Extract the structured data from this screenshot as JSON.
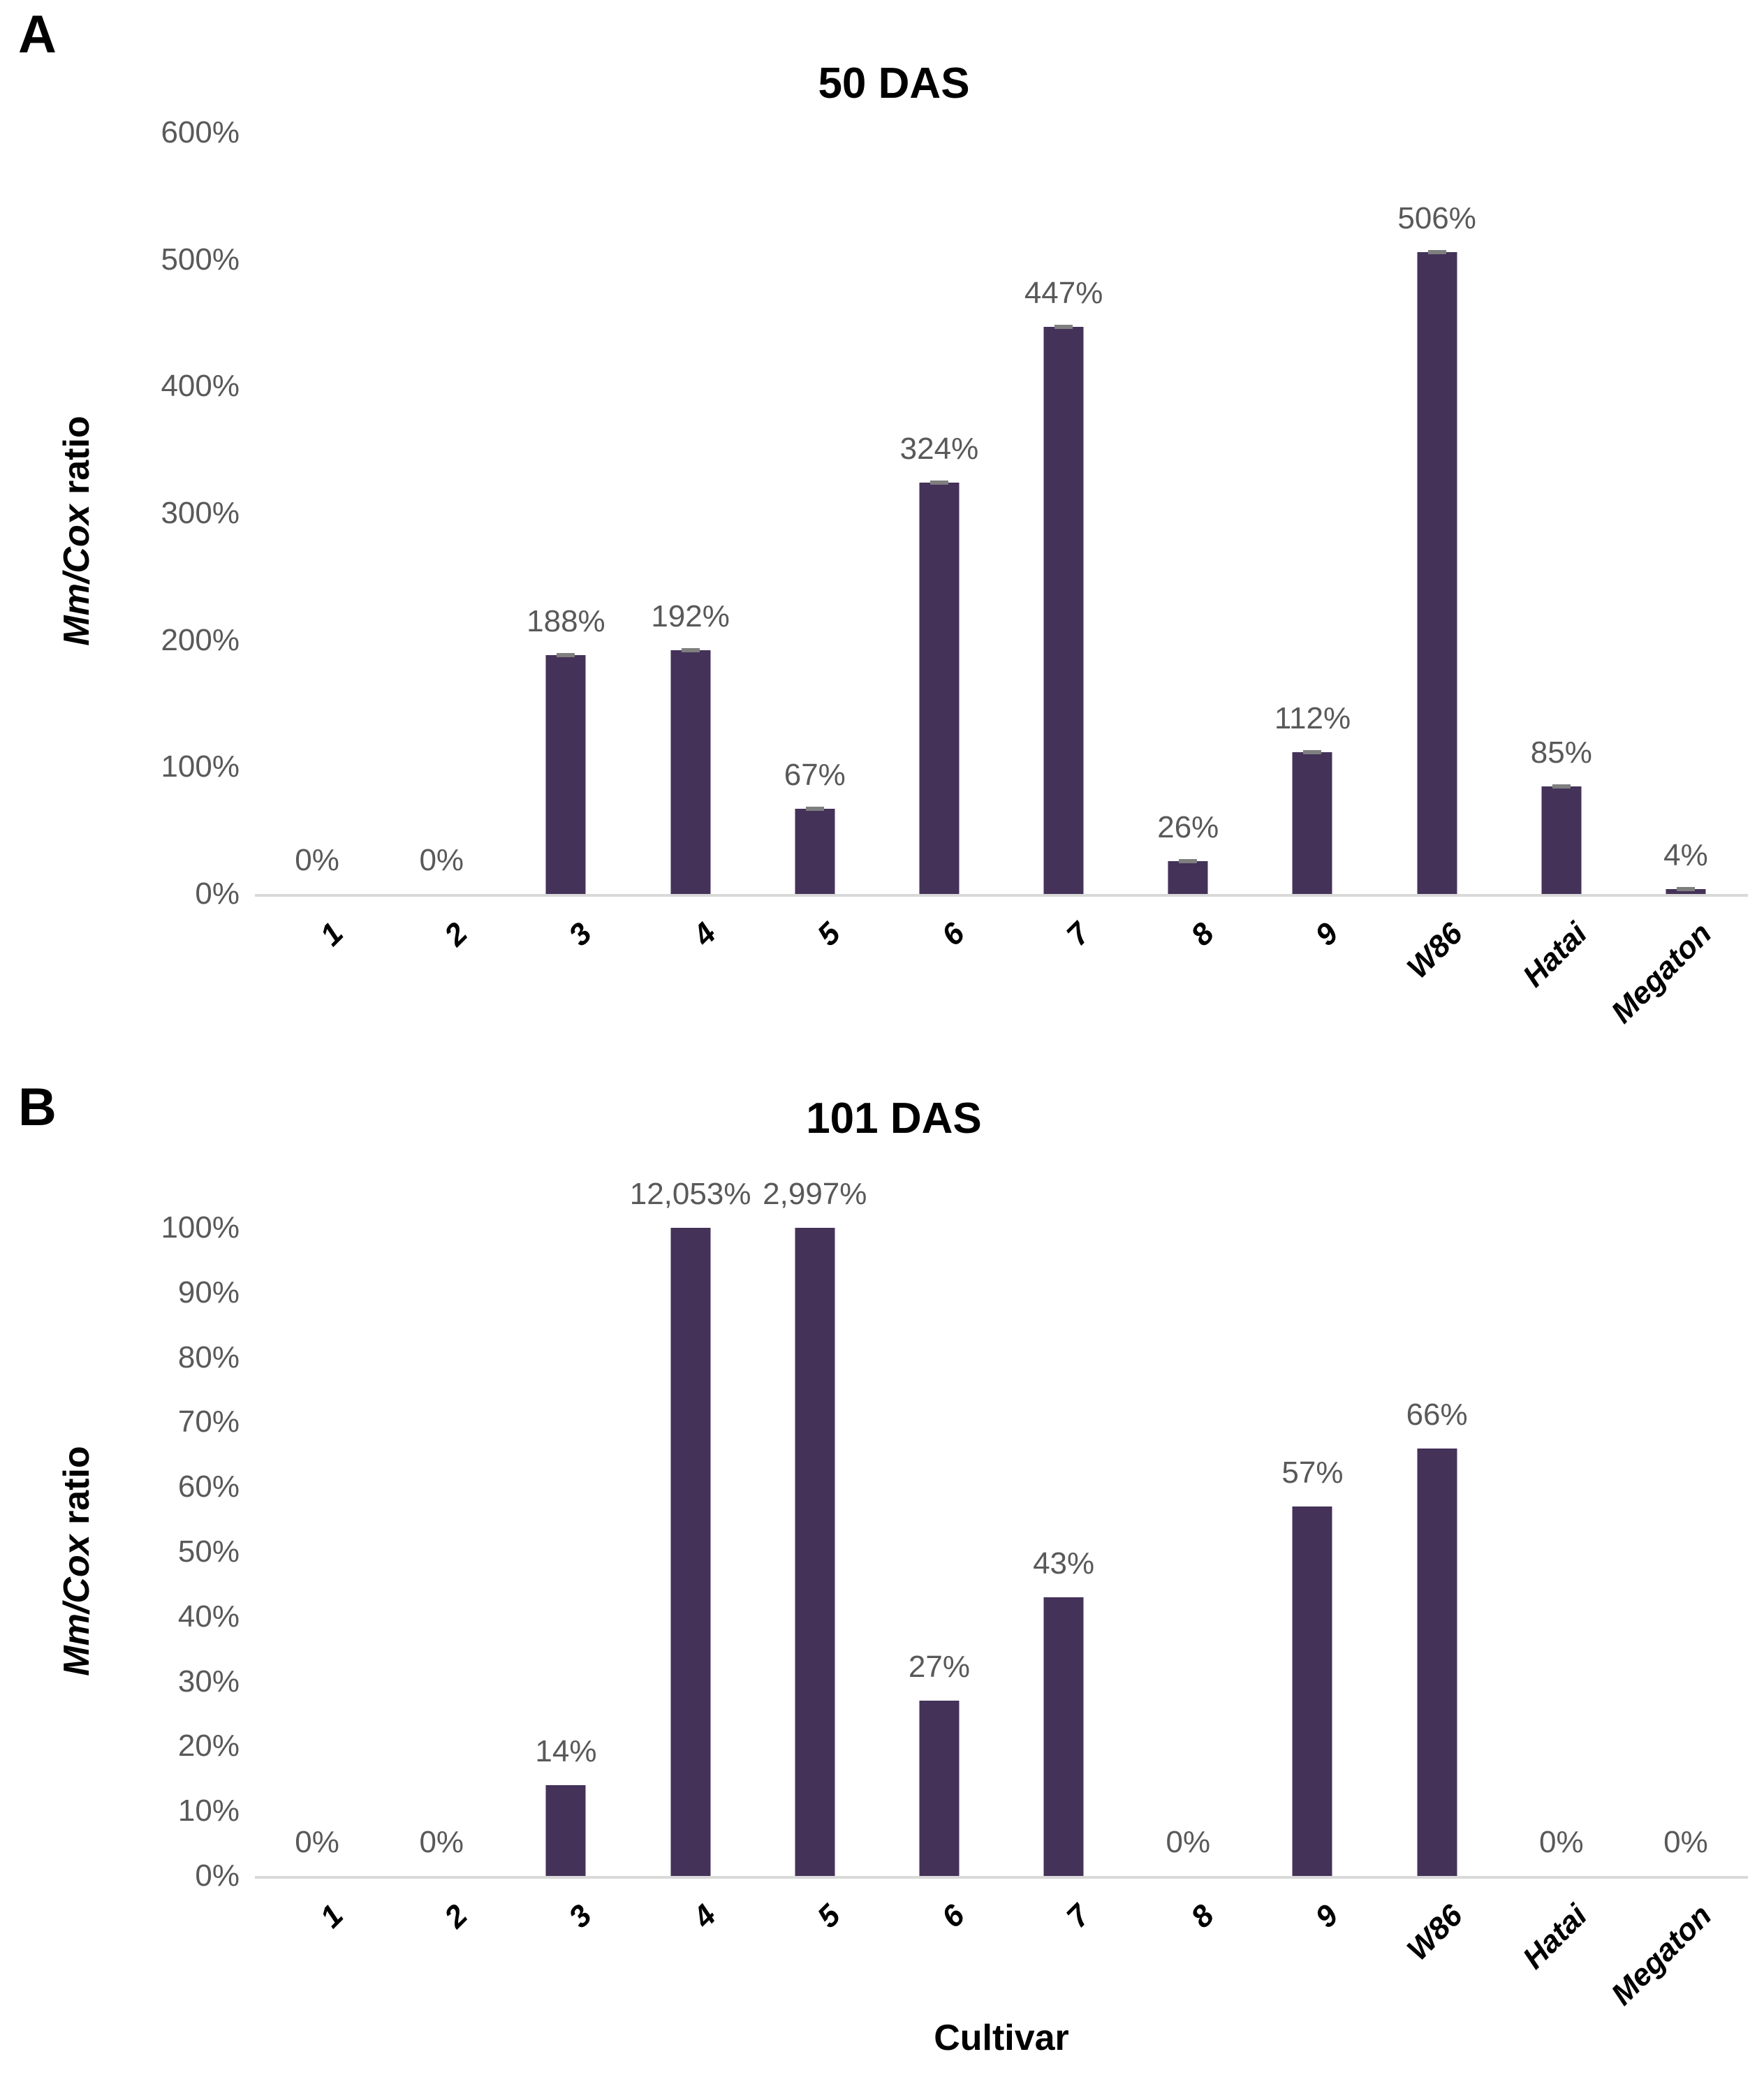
{
  "panels": [
    {
      "letter": "A"
    },
    {
      "letter": "B"
    }
  ],
  "colors": {
    "bar": "#443259",
    "data_label": "#595959",
    "tick_label": "#595959",
    "axis_line": "#d9d9d9",
    "error_cap": "#7f7f7f"
  },
  "chart_data": [
    {
      "type": "bar",
      "title": "50 DAS",
      "y_axis_title": {
        "italic": "Mm/Cox",
        "regular": " ratio"
      },
      "x_axis_title": "",
      "categories": [
        "1",
        "2",
        "3",
        "4",
        "5",
        "6",
        "7",
        "8",
        "9",
        "W86",
        "Hatai",
        "Megaton"
      ],
      "values": [
        0,
        0,
        188,
        192,
        67,
        324,
        447,
        26,
        112,
        506,
        85,
        4
      ],
      "data_labels": [
        "0%",
        "0%",
        "188%",
        "192%",
        "67%",
        "324%",
        "447%",
        "26%",
        "112%",
        "506%",
        "85%",
        "4%"
      ],
      "error_caps": [
        false,
        false,
        true,
        true,
        true,
        true,
        true,
        true,
        true,
        true,
        true,
        true
      ],
      "ylim": [
        0,
        600
      ],
      "y_ticks": [
        {
          "label": "600%",
          "value": 600
        },
        {
          "label": "500%",
          "value": 500
        },
        {
          "label": "400%",
          "value": 400
        },
        {
          "label": "300%",
          "value": 300
        },
        {
          "label": "200%",
          "value": 200
        },
        {
          "label": "100%",
          "value": 100
        },
        {
          "label": "0%",
          "value": 0
        }
      ],
      "grid": false,
      "legend": "none"
    },
    {
      "type": "bar",
      "title": "101 DAS",
      "y_axis_title": {
        "italic": "Mm/Cox",
        "regular": " ratio"
      },
      "x_axis_title": "Cultivar",
      "categories": [
        "1",
        "2",
        "3",
        "4",
        "5",
        "6",
        "7",
        "8",
        "9",
        "W86",
        "Hatai",
        "Megaton"
      ],
      "values": [
        0,
        0,
        14,
        12053,
        2997,
        27,
        43,
        0,
        57,
        66,
        0,
        0
      ],
      "display_heights": [
        0,
        0,
        14,
        100,
        100,
        27,
        43,
        0,
        57,
        66,
        0,
        0
      ],
      "data_labels": [
        "0%",
        "0%",
        "14%",
        "12,053%",
        "2,997%",
        "27%",
        "43%",
        "0%",
        "57%",
        "66%",
        "0%",
        "0%"
      ],
      "error_caps": [
        false,
        false,
        false,
        false,
        false,
        false,
        false,
        false,
        false,
        false,
        false,
        false
      ],
      "ylim": [
        0,
        100
      ],
      "y_ticks": [
        {
          "label": "100%",
          "value": 100
        },
        {
          "label": "90%",
          "value": 90
        },
        {
          "label": "80%",
          "value": 80
        },
        {
          "label": "70%",
          "value": 70
        },
        {
          "label": "60%",
          "value": 60
        },
        {
          "label": "50%",
          "value": 50
        },
        {
          "label": "40%",
          "value": 40
        },
        {
          "label": "30%",
          "value": 30
        },
        {
          "label": "20%",
          "value": 20
        },
        {
          "label": "10%",
          "value": 10
        },
        {
          "label": "0%",
          "value": 0
        }
      ],
      "grid": false,
      "legend": "none"
    }
  ]
}
